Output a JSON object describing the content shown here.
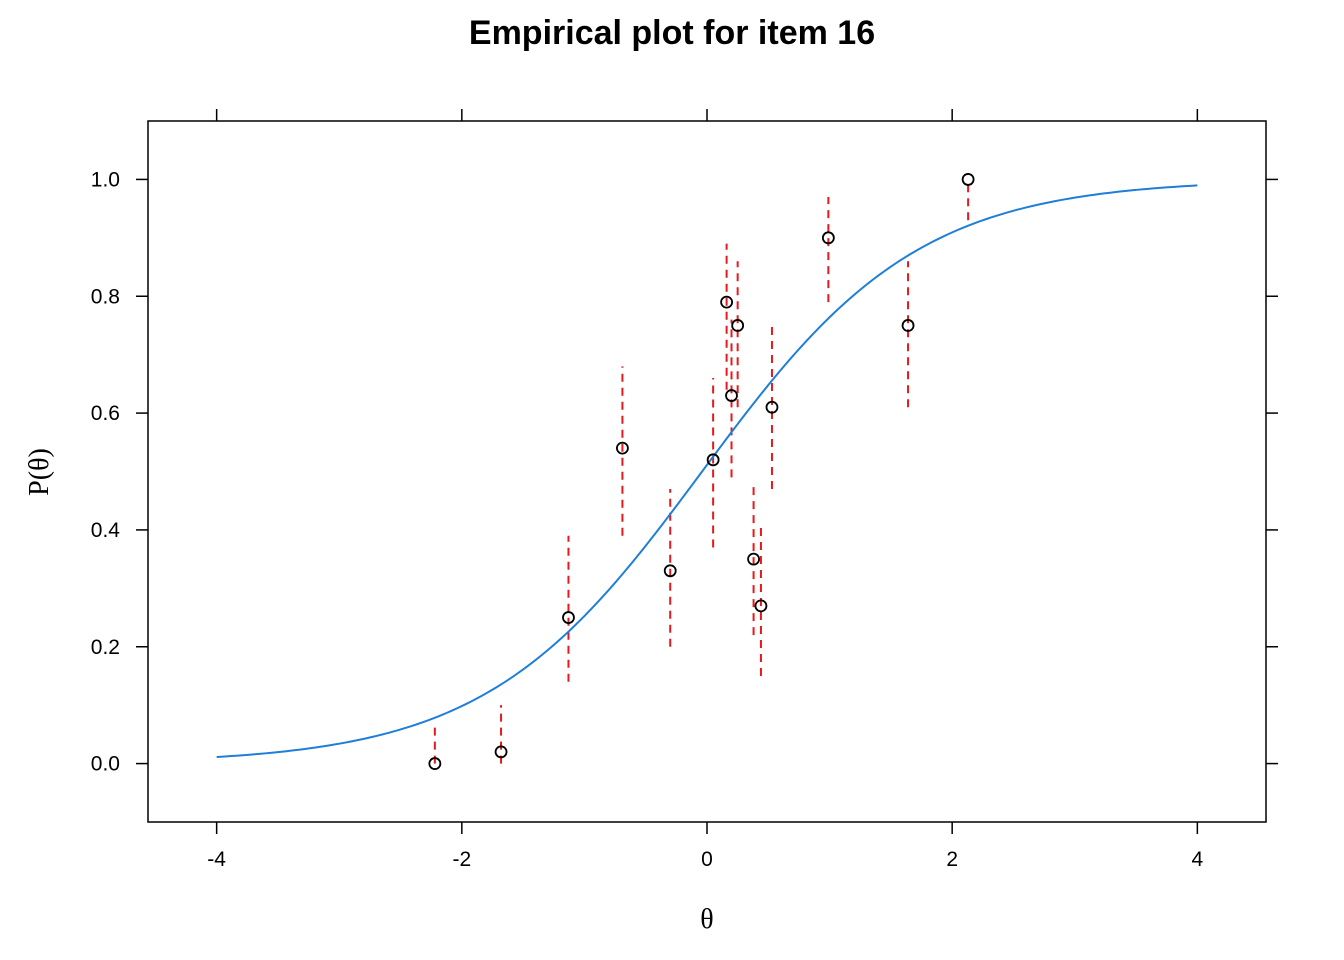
{
  "chart_data": {
    "type": "scatter",
    "title": "Empirical plot for item 16",
    "xlabel": "θ",
    "ylabel": "P(θ)",
    "xlim": [
      -4.56,
      4.56
    ],
    "ylim": [
      -0.1,
      1.1
    ],
    "xticks": [
      -4,
      -2,
      0,
      2,
      4
    ],
    "xtick_labels": [
      "-4",
      "-2",
      "0",
      "2",
      "4"
    ],
    "yticks": [
      0.0,
      0.2,
      0.4,
      0.6,
      0.8,
      1.0
    ],
    "ytick_labels": [
      "0.0",
      "0.2",
      "0.4",
      "0.6",
      "0.8",
      "1.0"
    ],
    "grid": false,
    "curve": {
      "kind": "logistic",
      "x_range": [
        -4,
        4
      ],
      "slope": 1.13,
      "location": -0.04,
      "color": "#1f7fd8"
    },
    "error_bar_color": "#e41a1c",
    "point_color": "#000000",
    "points": [
      {
        "x": -2.22,
        "y": 0.0,
        "lo": 0.0,
        "hi": 0.07
      },
      {
        "x": -1.68,
        "y": 0.02,
        "lo": 0.0,
        "hi": 0.1
      },
      {
        "x": -1.13,
        "y": 0.25,
        "lo": 0.14,
        "hi": 0.39
      },
      {
        "x": -0.69,
        "y": 0.54,
        "lo": 0.39,
        "hi": 0.68
      },
      {
        "x": -0.3,
        "y": 0.33,
        "lo": 0.2,
        "hi": 0.47
      },
      {
        "x": 0.05,
        "y": 0.52,
        "lo": 0.37,
        "hi": 0.66
      },
      {
        "x": 0.16,
        "y": 0.79,
        "lo": 0.64,
        "hi": 0.89
      },
      {
        "x": 0.2,
        "y": 0.63,
        "lo": 0.49,
        "hi": 0.76
      },
      {
        "x": 0.25,
        "y": 0.75,
        "lo": 0.61,
        "hi": 0.86
      },
      {
        "x": 0.38,
        "y": 0.35,
        "lo": 0.22,
        "hi": 0.48
      },
      {
        "x": 0.44,
        "y": 0.27,
        "lo": 0.15,
        "hi": 0.41
      },
      {
        "x": 0.53,
        "y": 0.61,
        "lo": 0.47,
        "hi": 0.75
      },
      {
        "x": 0.99,
        "y": 0.9,
        "lo": 0.79,
        "hi": 0.97
      },
      {
        "x": 1.64,
        "y": 0.75,
        "lo": 0.61,
        "hi": 0.86
      },
      {
        "x": 2.13,
        "y": 1.0,
        "lo": 0.93,
        "hi": 1.0
      }
    ]
  }
}
